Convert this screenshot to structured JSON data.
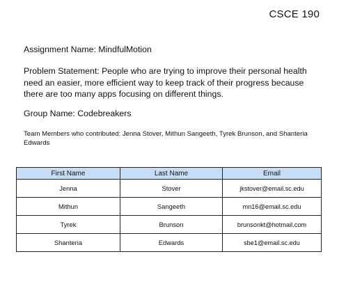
{
  "header": {
    "course": "CSCE 190"
  },
  "document": {
    "assignment": "Assignment Name: MindfulMotion",
    "problem_statement": "Problem Statement: People who are trying to improve their personal health need an easier, more efficient way to keep track of their progress because there are too many apps focusing on different things.",
    "group": "Group Name: Codebreakers",
    "team_members": "Team Members who contributed: Jenna Stover, Mithun Sangeeth, Tyrek Brunson, and Shanteria Edwards"
  },
  "table": {
    "header_color": "#c7ddf5",
    "columns": [
      "First Name",
      "Last Name",
      "Email"
    ],
    "rows": [
      [
        "Jenna",
        "Stover",
        "jkstover@email.sc.edu"
      ],
      [
        "Mithun",
        "Sangeeth",
        "mn16@email.sc.edu"
      ],
      [
        "Tyrek",
        "Brunson",
        "brunsonkt@hotmail.com"
      ],
      [
        "Shanteria",
        "Edwards",
        "sbe1@email.sc.edu"
      ]
    ]
  }
}
